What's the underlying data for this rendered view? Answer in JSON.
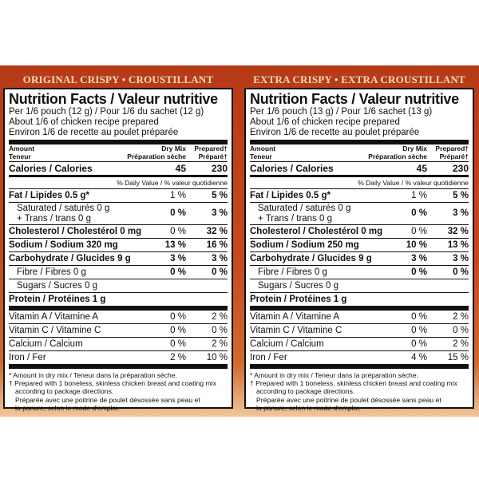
{
  "headers": [
    "ORIGINAL CRISPY • CROUSTILLANT",
    "EXTRA CRISPY • EXTRA CROUSTILLANT"
  ],
  "labels": [
    {
      "nf_title": "Nutrition Facts / Valeur nutritive",
      "serving": [
        "Per 1/6 pouch (12 g) / Pour 1/6 du sachet (12 g)",
        "About 1/6 of chicken recipe prepared",
        "Environ 1/6 de recette au poulet préparée"
      ],
      "col_head": {
        "left": [
          "Amount",
          "Teneur"
        ],
        "c1": [
          "Dry Mix",
          "Préparation sèche"
        ],
        "c2": [
          "Prepared†",
          "Préparé†"
        ]
      },
      "calories": {
        "name": "Calories / Calories",
        "dry": "45",
        "prep": "230"
      },
      "dv_header": "% Daily Value / % valeur quotidienne",
      "rows": [
        {
          "name": "Fat / Lipides 0.5 g*",
          "dry": "1 %",
          "prep": "5 %"
        },
        {
          "name": "Saturated / saturés 0 g",
          "name2": "+ Trans / trans 0 g",
          "dry": "0 %",
          "prep": "3 %"
        },
        {
          "name": "Cholesterol / Cholestérol 0 mg",
          "dry": "0 %",
          "prep": "32 %"
        },
        {
          "name": "Sodium / Sodium 320 mg",
          "dry": "13 %",
          "prep": "16 %"
        },
        {
          "name": "Carbohydrate / Glucides 9 g",
          "dry": "3 %",
          "prep": "3 %"
        },
        {
          "name": "Fibre / Fibres 0 g",
          "dry": "0 %",
          "prep": "0 %"
        },
        {
          "name": "Sugars / Sucres 0 g"
        },
        {
          "name": "Protein / Protéines 1 g"
        },
        {
          "name": "Vitamin A / Vitamine A",
          "dry": "0 %",
          "prep": "2 %"
        },
        {
          "name": "Vitamin C / Vitamine C",
          "dry": "0 %",
          "prep": "0 %"
        },
        {
          "name": "Calcium / Calcium",
          "dry": "0 %",
          "prep": "2 %"
        },
        {
          "name": "Iron / Fer",
          "dry": "2 %",
          "prep": "10 %"
        }
      ],
      "footnotes": [
        "* Amount in dry mix / Teneur dans la préparation sèche.",
        "† Prepared with 1 boneless, skinless chicken breast and coating mix",
        "according to package directions.",
        "Préparée avec une poitrine de poulet désossée sans peau et",
        "la panure, selon le mode d'emploi."
      ]
    },
    {
      "nf_title": "Nutrition Facts / Valeur nutritive",
      "serving": [
        "Per 1/6 pouch (13 g) / Pour 1/6 sachet (13 g)",
        "About 1/6 of chicken recipe prepared",
        "Environ 1/6 de recette au poulet préparée"
      ],
      "col_head": {
        "left": [
          "Amount",
          "Teneur"
        ],
        "c1": [
          "Dry Mix",
          "Préparation sèche"
        ],
        "c2": [
          "Prepared†",
          "Préparé†"
        ]
      },
      "calories": {
        "name": "Calories / Calories",
        "dry": "45",
        "prep": "230"
      },
      "dv_header": "% Daily Value / % valeur quotidienne",
      "rows": [
        {
          "name": "Fat / Lipides 0.5 g*",
          "dry": "1 %",
          "prep": "5 %"
        },
        {
          "name": "Saturated / saturés 0 g",
          "name2": "+ Trans / trans 0 g",
          "dry": "0 %",
          "prep": "3 %"
        },
        {
          "name": "Cholesterol / Cholestérol 0 mg",
          "dry": "0 %",
          "prep": "32 %"
        },
        {
          "name": "Sodium / Sodium 250 mg",
          "dry": "10 %",
          "prep": "13 %"
        },
        {
          "name": "Carbohydrate / Glucides 9 g",
          "dry": "3 %",
          "prep": "3 %"
        },
        {
          "name": "Fibre / Fibres 0 g",
          "dry": "0 %",
          "prep": "0 %"
        },
        {
          "name": "Sugars / Sucres 0 g"
        },
        {
          "name": "Protein / Protéines 1 g"
        },
        {
          "name": "Vitamin A / Vitamine A",
          "dry": "0 %",
          "prep": "2 %"
        },
        {
          "name": "Vitamin C / Vitamine C",
          "dry": "0 %",
          "prep": "0 %"
        },
        {
          "name": "Calcium / Calcium",
          "dry": "0 %",
          "prep": "2 %"
        },
        {
          "name": "Iron / Fer",
          "dry": "4 %",
          "prep": "15 %"
        }
      ],
      "footnotes": [
        "* Amount in dry mix / Teneur dans la préparation sèche.",
        "† Prepared with 1 boneless, skinless chicken breast and coating mix",
        "according to package directions.",
        "Préparée avec une poitrine de poulet désossée sans peau et",
        "la panure, selon le mode d'emploi."
      ]
    }
  ],
  "colors": {
    "band": "#b63a16",
    "header_text": "#f6dcc0",
    "label_bg": "#ffffff",
    "ink": "#111111"
  }
}
